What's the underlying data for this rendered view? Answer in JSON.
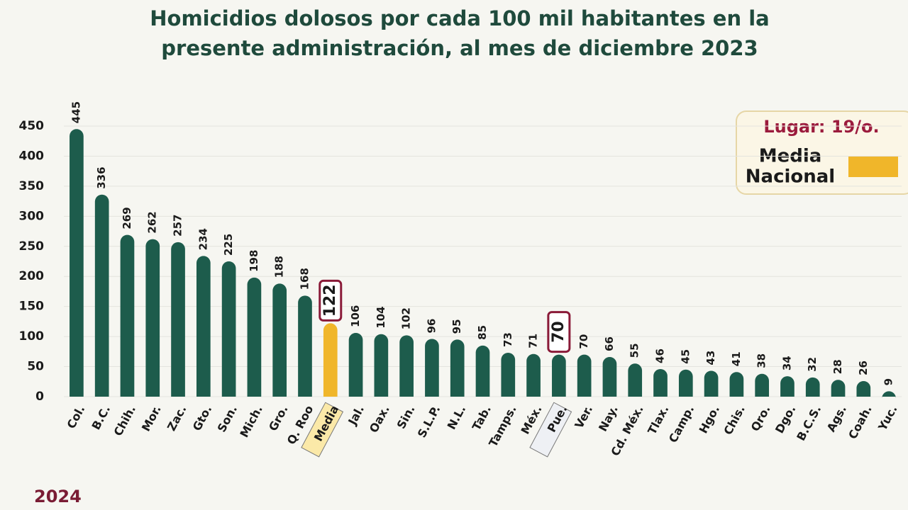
{
  "chart_data": {
    "type": "bar",
    "title_lines": [
      "Homicidios dolosos por cada 100 mil habitantes en la",
      "presente administración, al mes de diciembre 2023"
    ],
    "categories": [
      "Col.",
      "B.C.",
      "Chih.",
      "Mor.",
      "Zac.",
      "Gto.",
      "Son.",
      "Mich.",
      "Gro.",
      "Q. Roo",
      "Media",
      "Jal.",
      "Oax.",
      "Sin.",
      "S.L.P.",
      "N.L.",
      "Tab.",
      "Tamps.",
      "Méx.",
      "Pue.",
      "Ver.",
      "Nay.",
      "Cd. Méx.",
      "Tlax.",
      "Camp.",
      "Hgo.",
      "Chis.",
      "Qro.",
      "Dgo.",
      "B.C.S.",
      "Ags.",
      "Coah.",
      "Yuc."
    ],
    "values": [
      445,
      336,
      269,
      262,
      257,
      234,
      225,
      198,
      188,
      168,
      122,
      106,
      104,
      102,
      96,
      95,
      85,
      73,
      71,
      70,
      70,
      66,
      55,
      46,
      45,
      43,
      41,
      38,
      34,
      32,
      28,
      26,
      9
    ],
    "color": "#1d5c4c",
    "highlight_color": "#f0b62a",
    "highlighted_indices": [
      10,
      19
    ],
    "ylim": [
      0,
      450
    ],
    "yticks": [
      0,
      50,
      100,
      150,
      200,
      250,
      300,
      350,
      400,
      450
    ],
    "grid": true,
    "legend": {
      "title": "Lugar: 19/o.",
      "lines": [
        "Media",
        "Nacional"
      ]
    },
    "footer": "2024"
  }
}
